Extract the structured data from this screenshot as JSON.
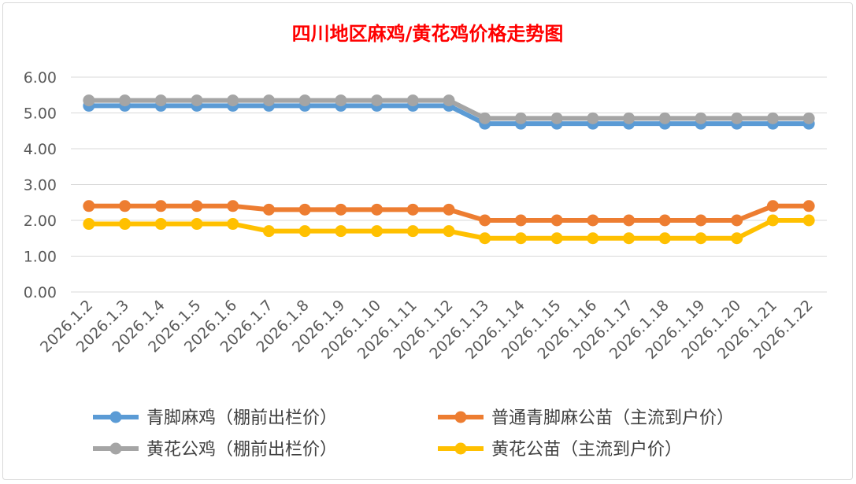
{
  "chart_data": {
    "type": "line",
    "title": "四川地区麻鸡/黄花鸡价格走势图",
    "xlabel": "",
    "ylabel": "",
    "ylim": [
      0,
      6
    ],
    "yticks": [
      "0.00",
      "1.00",
      "2.00",
      "3.00",
      "4.00",
      "5.00",
      "6.00"
    ],
    "grid": true,
    "legend_position": "bottom",
    "categories": [
      "2026.1.2",
      "2026.1.3",
      "2026.1.4",
      "2026.1.5",
      "2026.1.6",
      "2026.1.7",
      "2026.1.8",
      "2026.1.9",
      "2026.1.10",
      "2026.1.11",
      "2026.1.12",
      "2026.1.13",
      "2026.1.14",
      "2026.1.15",
      "2026.1.16",
      "2026.1.17",
      "2026.1.18",
      "2026.1.19",
      "2026.1.20",
      "2026.1.21",
      "2026.1.22"
    ],
    "series": [
      {
        "name": "青脚麻鸡（棚前出栏价）",
        "color": "#5b9bd5",
        "values": [
          5.2,
          5.2,
          5.2,
          5.2,
          5.2,
          5.2,
          5.2,
          5.2,
          5.2,
          5.2,
          5.2,
          4.7,
          4.7,
          4.7,
          4.7,
          4.7,
          4.7,
          4.7,
          4.7,
          4.7,
          4.7
        ]
      },
      {
        "name": "普通青脚麻公苗（主流到户价）",
        "color": "#ed7d31",
        "values": [
          2.4,
          2.4,
          2.4,
          2.4,
          2.4,
          2.3,
          2.3,
          2.3,
          2.3,
          2.3,
          2.3,
          2.0,
          2.0,
          2.0,
          2.0,
          2.0,
          2.0,
          2.0,
          2.0,
          2.4,
          2.4
        ]
      },
      {
        "name": "黄花公鸡（棚前出栏价）",
        "color": "#a5a5a5",
        "values": [
          5.35,
          5.35,
          5.35,
          5.35,
          5.35,
          5.35,
          5.35,
          5.35,
          5.35,
          5.35,
          5.35,
          4.85,
          4.85,
          4.85,
          4.85,
          4.85,
          4.85,
          4.85,
          4.85,
          4.85,
          4.85
        ]
      },
      {
        "name": "黄花公苗（主流到户价）",
        "color": "#ffc000",
        "values": [
          1.9,
          1.9,
          1.9,
          1.9,
          1.9,
          1.7,
          1.7,
          1.7,
          1.7,
          1.7,
          1.7,
          1.5,
          1.5,
          1.5,
          1.5,
          1.5,
          1.5,
          1.5,
          1.5,
          2.0,
          2.0
        ]
      }
    ]
  }
}
